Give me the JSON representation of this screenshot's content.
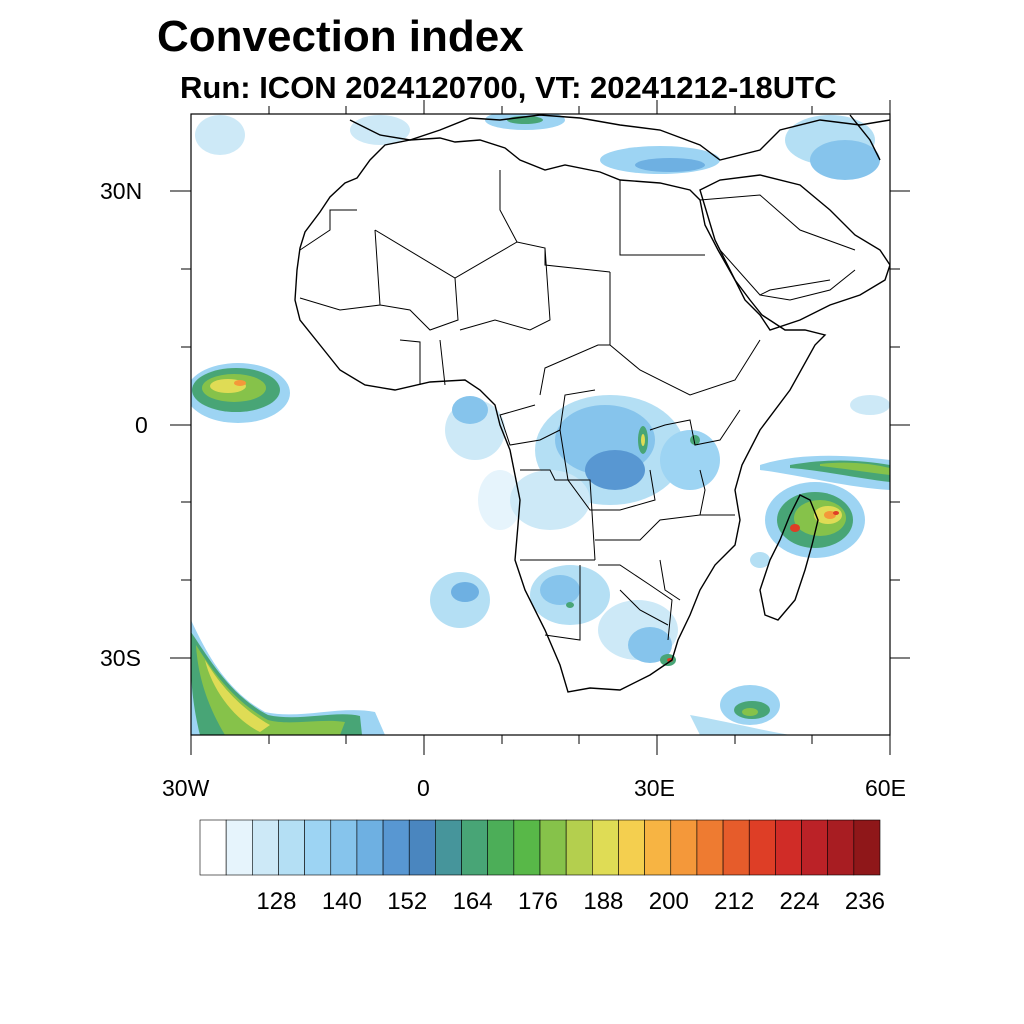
{
  "title": "Convection index",
  "subtitle": "Run: ICON 2024120700,  VT: 20241212-18UTC",
  "axes": {
    "x_ticks": [
      "30W",
      "0",
      "30E",
      "60E"
    ],
    "y_ticks": [
      "30N",
      "0",
      "30S"
    ]
  },
  "colorbar": {
    "labels": [
      "128",
      "140",
      "152",
      "164",
      "176",
      "188",
      "200",
      "212",
      "224",
      "236"
    ],
    "colors": [
      "#ffffff",
      "#e6f4fc",
      "#cde9f7",
      "#b4dff4",
      "#9dd4f3",
      "#86c4ec",
      "#6eb0e2",
      "#5897d2",
      "#4a86bf",
      "#46959b",
      "#48a576",
      "#4cae58",
      "#58b848",
      "#86c24a",
      "#b4cf4e",
      "#dfdc55",
      "#f4cf4f",
      "#f7b443",
      "#f4983a",
      "#ee7b31",
      "#e65c2b",
      "#de3e26",
      "#d02c27",
      "#bb2227",
      "#a81d22",
      "#8f1719"
    ]
  },
  "map": {
    "region": "Africa",
    "lon_range": [
      -30,
      60
    ],
    "lat_range": [
      -40,
      40
    ],
    "field": "convection index"
  }
}
